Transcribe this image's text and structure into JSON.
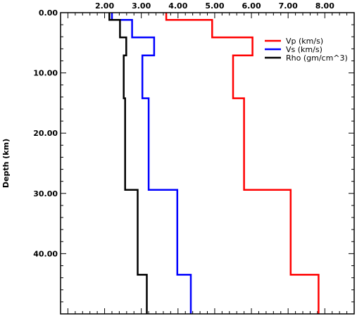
{
  "chart_data": {
    "type": "line",
    "title": "",
    "xlabel": "",
    "ylabel": "Depth (km)",
    "xlim": [
      0.8,
      8.8
    ],
    "ylim": [
      0,
      50
    ],
    "y_inverted": true,
    "x_axis_position": "top",
    "x_tick_labels": [
      "2.00",
      "3.00",
      "4.00",
      "5.00",
      "6.00",
      "7.00",
      "8.00"
    ],
    "x_ticks": [
      2,
      3,
      4,
      5,
      6,
      7,
      8
    ],
    "y_tick_labels": [
      "0.00",
      "10.00",
      "20.00",
      "30.00",
      "40.00"
    ],
    "y_ticks": [
      0,
      10,
      20,
      30,
      40
    ],
    "legend_position": "top-right",
    "series": [
      {
        "name": "Vp (km/s)",
        "color": "#ff0000",
        "x": [
          3.68,
          3.68,
          4.93,
          4.93,
          6.03,
          6.03,
          5.5,
          5.5,
          5.8,
          5.8,
          7.07,
          7.07,
          7.83,
          7.83
        ],
        "y": [
          0,
          1.2,
          1.2,
          4.1,
          4.1,
          7.1,
          7.1,
          14.2,
          14.2,
          29.4,
          29.4,
          43.5,
          43.5,
          50
        ]
      },
      {
        "name": "Vs (km/s)",
        "color": "#0000ff",
        "x": [
          2.2,
          2.2,
          2.75,
          2.75,
          3.35,
          3.35,
          3.03,
          3.03,
          3.2,
          3.2,
          3.98,
          3.98,
          4.35,
          4.35
        ],
        "y": [
          0,
          1.2,
          1.2,
          4.1,
          4.1,
          7.1,
          7.1,
          14.2,
          14.2,
          29.4,
          29.4,
          43.5,
          43.5,
          50
        ]
      },
      {
        "name": "Rho (gm/cm^3)",
        "color": "#000000",
        "x": [
          2.13,
          2.13,
          2.42,
          2.42,
          2.59,
          2.59,
          2.52,
          2.52,
          2.56,
          2.56,
          2.9,
          2.9,
          3.15,
          3.15
        ],
        "y": [
          0,
          1.2,
          1.2,
          4.1,
          4.1,
          7.1,
          7.1,
          14.2,
          14.2,
          29.4,
          29.4,
          43.5,
          43.5,
          50
        ]
      }
    ]
  }
}
